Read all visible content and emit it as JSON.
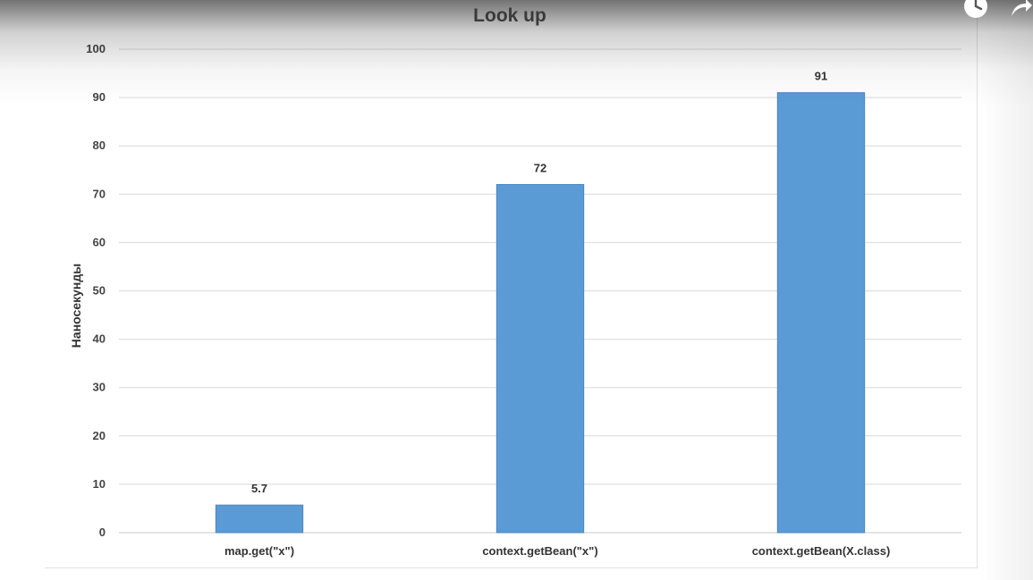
{
  "chart_data": {
    "type": "bar",
    "title": "Look up",
    "xlabel": "",
    "ylabel": "Наносекунды",
    "categories": [
      "map.get(\"x\")",
      "context.getBean(\"x\")",
      "context.getBean(X.class)"
    ],
    "values": [
      5.7,
      72,
      91
    ],
    "value_labels": [
      "5.7",
      "72",
      "91"
    ],
    "ylim": [
      0,
      100
    ],
    "yticks": [
      0,
      10,
      20,
      30,
      40,
      50,
      60,
      70,
      80,
      90,
      100
    ],
    "grid": true,
    "legend": "none",
    "bar_color": "#5b9bd5",
    "bar_edge_color": "#4a86c0",
    "grid_color": "#d9d9d9"
  },
  "overlay": {
    "clock_icon": "clock-icon",
    "share_icon": "share-arrow-icon"
  }
}
